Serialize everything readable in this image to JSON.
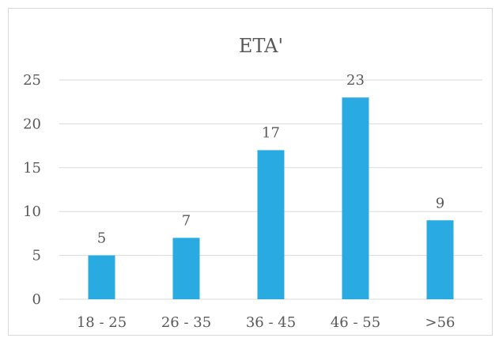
{
  "chart_data": {
    "type": "bar",
    "title": "ETA'",
    "categories": [
      "18 - 25",
      "26 - 35",
      "36 - 45",
      "46 - 55",
      ">56"
    ],
    "values": [
      5,
      7,
      17,
      23,
      9
    ],
    "data_labels": [
      "5",
      "7",
      "17",
      "23",
      "9"
    ],
    "y_ticks": [
      "0",
      "5",
      "10",
      "15",
      "20",
      "25"
    ],
    "ylim": [
      0,
      25
    ],
    "xlabel": "",
    "ylabel": "",
    "grid": true,
    "legend": "none",
    "colors": {
      "bar": "#29abe2",
      "grid": "#d9d9d9",
      "text": "#595959"
    }
  }
}
